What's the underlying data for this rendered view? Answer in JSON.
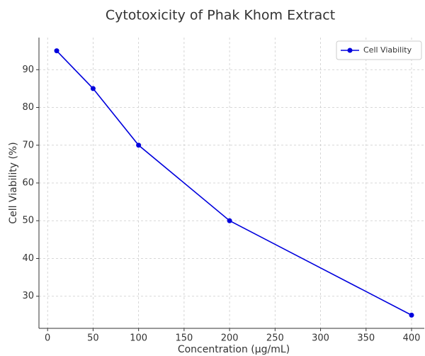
{
  "chart_data": {
    "type": "line",
    "title": "Cytotoxicity of Phak Khom Extract",
    "x_label": "Concentration (µg/mL)",
    "y_label": "Cell Viability (%)",
    "x": [
      10,
      50,
      100,
      200,
      400
    ],
    "series": [
      {
        "name": "Cell Viability",
        "color": "#0000dd",
        "values": [
          95,
          85,
          70,
          50,
          25
        ]
      }
    ],
    "xlim": [
      -9.5,
      414
    ],
    "xticks": [
      0,
      50,
      100,
      150,
      200,
      250,
      300,
      350,
      400
    ],
    "ylim": [
      21.5,
      98.5
    ],
    "yticks": [
      30,
      40,
      50,
      60,
      70,
      80,
      90
    ],
    "grid": true,
    "legend": "upper right"
  }
}
